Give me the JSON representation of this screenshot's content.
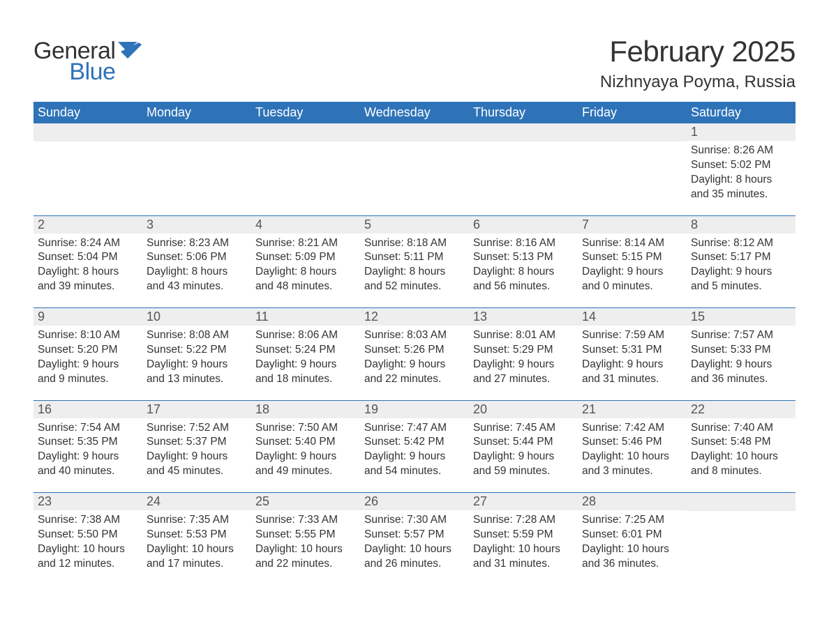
{
  "logo": {
    "word1": "General",
    "word2": "Blue"
  },
  "title": "February 2025",
  "location": "Nizhnyaya Poyma, Russia",
  "colors": {
    "header_bg": "#2e73b8",
    "header_text": "#ffffff",
    "daynum_bg": "#eeeeee",
    "text": "#333333",
    "logo_blue": "#2e73b8",
    "page_bg": "#ffffff"
  },
  "day_labels": [
    "Sunday",
    "Monday",
    "Tuesday",
    "Wednesday",
    "Thursday",
    "Friday",
    "Saturday"
  ],
  "weeks": [
    [
      null,
      null,
      null,
      null,
      null,
      null,
      {
        "n": "1",
        "sunrise": "8:26 AM",
        "sunset": "5:02 PM",
        "dh": "8",
        "dm": "35"
      }
    ],
    [
      {
        "n": "2",
        "sunrise": "8:24 AM",
        "sunset": "5:04 PM",
        "dh": "8",
        "dm": "39"
      },
      {
        "n": "3",
        "sunrise": "8:23 AM",
        "sunset": "5:06 PM",
        "dh": "8",
        "dm": "43"
      },
      {
        "n": "4",
        "sunrise": "8:21 AM",
        "sunset": "5:09 PM",
        "dh": "8",
        "dm": "48"
      },
      {
        "n": "5",
        "sunrise": "8:18 AM",
        "sunset": "5:11 PM",
        "dh": "8",
        "dm": "52"
      },
      {
        "n": "6",
        "sunrise": "8:16 AM",
        "sunset": "5:13 PM",
        "dh": "8",
        "dm": "56"
      },
      {
        "n": "7",
        "sunrise": "8:14 AM",
        "sunset": "5:15 PM",
        "dh": "9",
        "dm": "0"
      },
      {
        "n": "8",
        "sunrise": "8:12 AM",
        "sunset": "5:17 PM",
        "dh": "9",
        "dm": "5"
      }
    ],
    [
      {
        "n": "9",
        "sunrise": "8:10 AM",
        "sunset": "5:20 PM",
        "dh": "9",
        "dm": "9"
      },
      {
        "n": "10",
        "sunrise": "8:08 AM",
        "sunset": "5:22 PM",
        "dh": "9",
        "dm": "13"
      },
      {
        "n": "11",
        "sunrise": "8:06 AM",
        "sunset": "5:24 PM",
        "dh": "9",
        "dm": "18"
      },
      {
        "n": "12",
        "sunrise": "8:03 AM",
        "sunset": "5:26 PM",
        "dh": "9",
        "dm": "22"
      },
      {
        "n": "13",
        "sunrise": "8:01 AM",
        "sunset": "5:29 PM",
        "dh": "9",
        "dm": "27"
      },
      {
        "n": "14",
        "sunrise": "7:59 AM",
        "sunset": "5:31 PM",
        "dh": "9",
        "dm": "31"
      },
      {
        "n": "15",
        "sunrise": "7:57 AM",
        "sunset": "5:33 PM",
        "dh": "9",
        "dm": "36"
      }
    ],
    [
      {
        "n": "16",
        "sunrise": "7:54 AM",
        "sunset": "5:35 PM",
        "dh": "9",
        "dm": "40"
      },
      {
        "n": "17",
        "sunrise": "7:52 AM",
        "sunset": "5:37 PM",
        "dh": "9",
        "dm": "45"
      },
      {
        "n": "18",
        "sunrise": "7:50 AM",
        "sunset": "5:40 PM",
        "dh": "9",
        "dm": "49"
      },
      {
        "n": "19",
        "sunrise": "7:47 AM",
        "sunset": "5:42 PM",
        "dh": "9",
        "dm": "54"
      },
      {
        "n": "20",
        "sunrise": "7:45 AM",
        "sunset": "5:44 PM",
        "dh": "9",
        "dm": "59"
      },
      {
        "n": "21",
        "sunrise": "7:42 AM",
        "sunset": "5:46 PM",
        "dh": "10",
        "dm": "3"
      },
      {
        "n": "22",
        "sunrise": "7:40 AM",
        "sunset": "5:48 PM",
        "dh": "10",
        "dm": "8"
      }
    ],
    [
      {
        "n": "23",
        "sunrise": "7:38 AM",
        "sunset": "5:50 PM",
        "dh": "10",
        "dm": "12"
      },
      {
        "n": "24",
        "sunrise": "7:35 AM",
        "sunset": "5:53 PM",
        "dh": "10",
        "dm": "17"
      },
      {
        "n": "25",
        "sunrise": "7:33 AM",
        "sunset": "5:55 PM",
        "dh": "10",
        "dm": "22"
      },
      {
        "n": "26",
        "sunrise": "7:30 AM",
        "sunset": "5:57 PM",
        "dh": "10",
        "dm": "26"
      },
      {
        "n": "27",
        "sunrise": "7:28 AM",
        "sunset": "5:59 PM",
        "dh": "10",
        "dm": "31"
      },
      {
        "n": "28",
        "sunrise": "7:25 AM",
        "sunset": "6:01 PM",
        "dh": "10",
        "dm": "36"
      },
      null
    ]
  ],
  "labels": {
    "sunrise": "Sunrise:",
    "sunset": "Sunset:",
    "daylight": "Daylight:",
    "hours": "hours",
    "and": "and",
    "minutes": "minutes."
  }
}
